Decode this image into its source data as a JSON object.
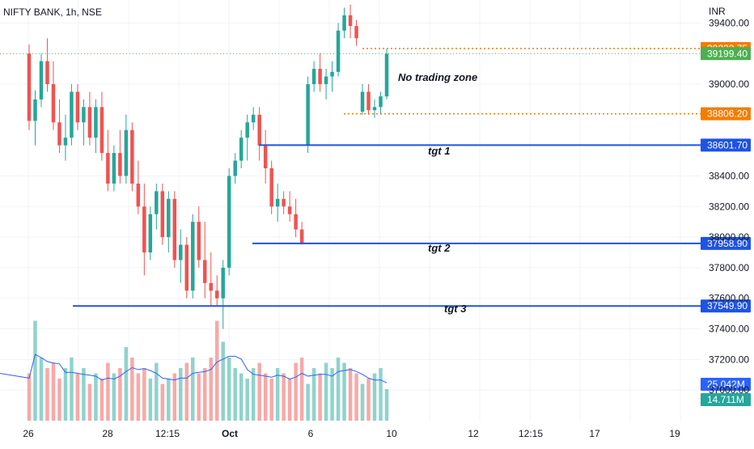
{
  "header": {
    "title": "NIFTY BANK, 1h, NSE",
    "currency": "INR"
  },
  "colors": {
    "up": "#26a69a",
    "down": "#ef5350",
    "up_vol": "#8fd3cc",
    "down_vol": "#f7a9a7",
    "hline": "#1e53e5",
    "orange": "#f57c00",
    "green_badge": "#4caf50",
    "ma": "#2962ff",
    "grid": "#f0f3fa"
  },
  "price_axis": {
    "min": 36800,
    "max": 39550,
    "ticks": [
      "39400.00",
      "39000.00",
      "38400.00",
      "38200.00",
      "38000.00",
      "37800.00",
      "37600.00",
      "37400.00",
      "37200.00",
      "37000.00"
    ]
  },
  "time_axis": {
    "labels": [
      "26",
      "28",
      "12:15",
      "Oct",
      "6",
      "10",
      "12",
      "12:15",
      "17",
      "19"
    ]
  },
  "levels": [
    {
      "name": "orange-upper",
      "value": 39232.75,
      "label": "39232.75",
      "color": "#f57c00"
    },
    {
      "name": "current",
      "value": 39199.4,
      "label": "39199.40",
      "color": "#4caf50"
    },
    {
      "name": "orange-lower",
      "value": 38806.2,
      "label": "38806.20",
      "color": "#f57c00"
    },
    {
      "name": "tgt1",
      "value": 38601.7,
      "label": "38601.70",
      "color": "#1e53e5"
    },
    {
      "name": "tgt2",
      "value": 37958.9,
      "label": "37958.90",
      "color": "#1e53e5"
    },
    {
      "name": "tgt3",
      "value": 37549.9,
      "label": "37549.90",
      "color": "#1e53e5"
    }
  ],
  "volume_badges": [
    {
      "label": "25.042M",
      "color": "#2962ff"
    },
    {
      "label": "14.711M",
      "color": "#26a69a"
    }
  ],
  "annotations": {
    "no_trade": "No trading zone",
    "tgt1": "tgt 1",
    "tgt2": "tgt 2",
    "tgt3": "tgt 3"
  },
  "chart_data": {
    "type": "candlestick",
    "title": "NIFTY BANK, 1h, NSE",
    "ylim": [
      36800,
      39550
    ],
    "candles": [
      [
        39200,
        39260,
        38700,
        38760
      ],
      [
        38760,
        38960,
        38600,
        38900
      ],
      [
        38900,
        39200,
        38850,
        39150
      ],
      [
        39150,
        39300,
        38950,
        39000
      ],
      [
        39000,
        39150,
        38700,
        38750
      ],
      [
        38750,
        38900,
        38550,
        38600
      ],
      [
        38600,
        38800,
        38500,
        38650
      ],
      [
        38650,
        39000,
        38600,
        38950
      ],
      [
        38950,
        39000,
        38700,
        38750
      ],
      [
        38750,
        38900,
        38600,
        38850
      ],
      [
        38850,
        38950,
        38600,
        38650
      ],
      [
        38650,
        38900,
        38550,
        38850
      ],
      [
        38850,
        38950,
        38500,
        38550
      ],
      [
        38550,
        38700,
        38300,
        38350
      ],
      [
        38350,
        38600,
        38300,
        38550
      ],
      [
        38550,
        38700,
        38350,
        38400
      ],
      [
        38400,
        38800,
        38350,
        38700
      ],
      [
        38700,
        38750,
        38300,
        38350
      ],
      [
        38350,
        38500,
        38150,
        38200
      ],
      [
        38200,
        38350,
        37750,
        37900
      ],
      [
        37900,
        38200,
        37850,
        38150
      ],
      [
        38150,
        38350,
        38050,
        38300
      ],
      [
        38300,
        38350,
        37950,
        38000
      ],
      [
        38000,
        38300,
        37900,
        38250
      ],
      [
        38250,
        38300,
        37800,
        37850
      ],
      [
        37850,
        38050,
        37700,
        37950
      ],
      [
        37950,
        38000,
        37600,
        37650
      ],
      [
        37650,
        38150,
        37600,
        38100
      ],
      [
        38100,
        38200,
        37800,
        37850
      ],
      [
        37850,
        38100,
        37600,
        37700
      ],
      [
        37700,
        37900,
        37550,
        37650
      ],
      [
        37650,
        37750,
        37550,
        37600
      ],
      [
        37600,
        37850,
        37400,
        37800
      ],
      [
        37800,
        38450,
        37750,
        38400
      ],
      [
        38400,
        38550,
        38350,
        38500
      ],
      [
        38500,
        38700,
        38450,
        38650
      ],
      [
        38650,
        38800,
        38500,
        38750
      ],
      [
        38750,
        38850,
        38700,
        38800
      ],
      [
        38800,
        38850,
        38500,
        38600
      ],
      [
        38600,
        38700,
        38350,
        38450
      ],
      [
        38450,
        38500,
        38150,
        38200
      ],
      [
        38200,
        38350,
        38100,
        38250
      ],
      [
        38250,
        38300,
        38150,
        38200
      ],
      [
        38200,
        38300,
        38100,
        38150
      ],
      [
        38150,
        38250,
        38000,
        38050
      ],
      [
        38050,
        38100,
        37950,
        37960
      ],
      [
        38600,
        39050,
        38550,
        39000
      ],
      [
        39000,
        39150,
        38950,
        39100
      ],
      [
        39100,
        39200,
        38950,
        39000
      ],
      [
        39000,
        39100,
        38900,
        39050
      ],
      [
        39050,
        39150,
        38950,
        39080
      ],
      [
        39080,
        39400,
        39050,
        39350
      ],
      [
        39350,
        39500,
        39300,
        39450
      ],
      [
        39450,
        39520,
        39300,
        39380
      ],
      [
        39380,
        39420,
        39250,
        39300
      ],
      [
        38820,
        39000,
        38800,
        38950
      ],
      [
        38950,
        39000,
        38800,
        38830
      ],
      [
        38830,
        38900,
        38780,
        38850
      ],
      [
        38850,
        38950,
        38800,
        38920
      ],
      [
        38920,
        39230,
        38900,
        39199
      ]
    ],
    "volumes": [
      0.45,
      0.95,
      0.6,
      0.5,
      0.55,
      0.4,
      0.5,
      0.6,
      0.45,
      0.5,
      0.35,
      0.45,
      0.4,
      0.55,
      0.45,
      0.5,
      0.7,
      0.6,
      0.45,
      0.5,
      0.4,
      0.55,
      0.35,
      0.4,
      0.45,
      0.5,
      0.55,
      0.6,
      0.45,
      0.5,
      0.6,
      0.95,
      0.75,
      0.6,
      0.5,
      0.45,
      0.4,
      0.5,
      0.55,
      0.45,
      0.4,
      0.5,
      0.45,
      0.4,
      0.55,
      0.6,
      0.35,
      0.5,
      0.45,
      0.55,
      0.5,
      0.6,
      0.55,
      0.5,
      0.45,
      0.35,
      0.4,
      0.45,
      0.5,
      0.3
    ],
    "xlabel": "",
    "ylabel": ""
  }
}
